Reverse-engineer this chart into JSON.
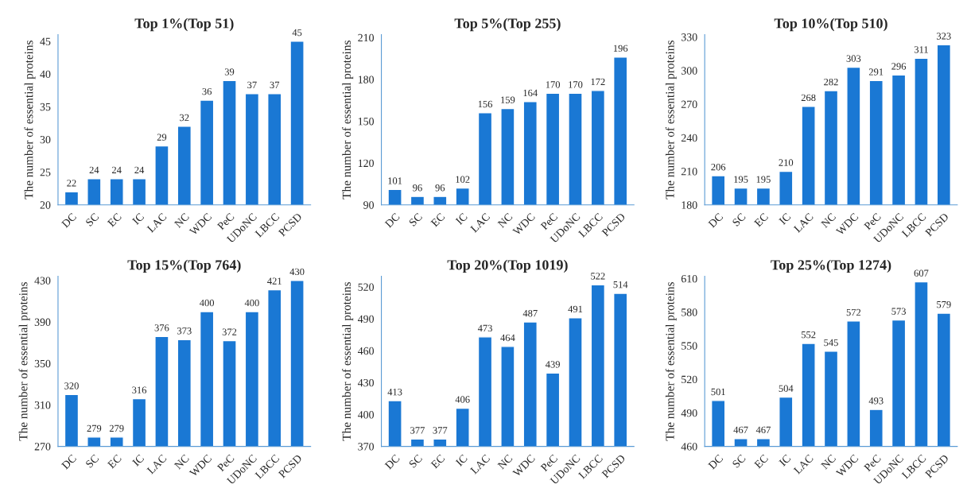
{
  "chart_data": [
    {
      "type": "bar",
      "title": "Top 1%(Top 51)",
      "ylabel": "The number of essential proteins",
      "categories": [
        "DC",
        "SC",
        "EC",
        "IC",
        "LAC",
        "NC",
        "WDC",
        "PeC",
        "UDoNC",
        "LBCC",
        "PCSD"
      ],
      "values": [
        22,
        24,
        24,
        24,
        29,
        32,
        36,
        39,
        37,
        37,
        45
      ],
      "color": "#1a78d4",
      "ylim": [
        20,
        46
      ],
      "yticks": [
        20,
        25,
        30,
        35,
        40,
        45
      ],
      "data_labels": true,
      "grid": false
    },
    {
      "type": "bar",
      "title": "Top 5%(Top 255)",
      "ylabel": "The number of essential proteins",
      "categories": [
        "DC",
        "SC",
        "EC",
        "IC",
        "LAC",
        "NC",
        "WDC",
        "PeC",
        "UDoNC",
        "LBCC",
        "PCSD"
      ],
      "values": [
        101,
        96,
        96,
        102,
        156,
        159,
        164,
        170,
        170,
        172,
        196
      ],
      "color": "#1a78d4",
      "ylim": [
        90,
        212
      ],
      "yticks": [
        90,
        120,
        150,
        180,
        210
      ],
      "data_labels": true,
      "grid": false
    },
    {
      "type": "bar",
      "title": "Top 10%(Top 510)",
      "ylabel": "The number of essential proteins",
      "categories": [
        "DC",
        "SC",
        "EC",
        "IC",
        "LAC",
        "NC",
        "WDC",
        "PeC",
        "UDoNC",
        "LBCC",
        "PCSD"
      ],
      "values": [
        206,
        195,
        195,
        210,
        268,
        282,
        303,
        291,
        296,
        311,
        323
      ],
      "color": "#1a78d4",
      "ylim": [
        180,
        332
      ],
      "yticks": [
        180,
        210,
        240,
        270,
        300,
        330
      ],
      "data_labels": true,
      "grid": false
    },
    {
      "type": "bar",
      "title": "Top 15%(Top 764)",
      "ylabel": "The number of essential proteins",
      "categories": [
        "DC",
        "SC",
        "EC",
        "IC",
        "LAC",
        "NC",
        "WDC",
        "PeC",
        "UDoNC",
        "LBCC",
        "PCSD"
      ],
      "values": [
        320,
        279,
        279,
        316,
        376,
        373,
        400,
        372,
        400,
        421,
        430
      ],
      "color": "#1a78d4",
      "ylim": [
        270,
        434
      ],
      "yticks": [
        270,
        310,
        350,
        390,
        430
      ],
      "data_labels": true,
      "grid": false
    },
    {
      "type": "bar",
      "title": "Top 20%(Top 1019)",
      "ylabel": "The number of essential proteins",
      "categories": [
        "DC",
        "SC",
        "EC",
        "IC",
        "LAC",
        "NC",
        "WDC",
        "PeC",
        "UDoNC",
        "LBCC",
        "PCSD"
      ],
      "values": [
        413,
        377,
        377,
        406,
        473,
        464,
        487,
        439,
        491,
        522,
        514
      ],
      "color": "#1a78d4",
      "ylim": [
        370,
        530
      ],
      "yticks": [
        370,
        400,
        430,
        460,
        490,
        520
      ],
      "data_labels": true,
      "grid": false
    },
    {
      "type": "bar",
      "title": "Top 25%(Top 1274)",
      "ylabel": "The number of essential proteins",
      "categories": [
        "DC",
        "SC",
        "EC",
        "IC",
        "LAC",
        "NC",
        "WDC",
        "PeC",
        "UDoNC",
        "LBCC",
        "PCSD"
      ],
      "values": [
        501,
        467,
        467,
        504,
        552,
        545,
        572,
        493,
        573,
        607,
        579
      ],
      "color": "#1a78d4",
      "ylim": [
        460,
        612
      ],
      "yticks": [
        460,
        490,
        520,
        550,
        580,
        610
      ],
      "data_labels": true,
      "grid": false
    }
  ]
}
